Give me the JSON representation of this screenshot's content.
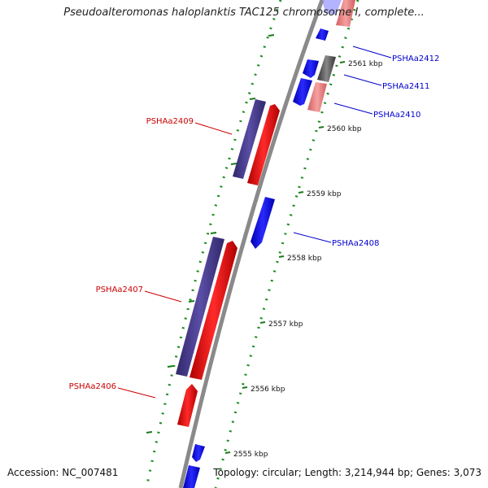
{
  "header": {
    "title": "Pseudoalteromonas haloplanktis TAC125 chromosome I, complete..."
  },
  "footer": {
    "accession": "Accession: NC_007481",
    "topology": "Topology: circular; Length: 3,214,944 bp; Genes: 3,073"
  },
  "ticks": [
    "2555 kbp",
    "2556 kbp",
    "2557 kbp",
    "2558 kbp",
    "2559 kbp",
    "2560 kbp",
    "2561 kbp"
  ],
  "gene_labels": {
    "PSHAa2412": "PSHAa2412",
    "PSHAa2411": "PSHAa2411",
    "PSHAa2410": "PSHAa2410",
    "PSHAa2409": "PSHAa2409",
    "PSHAa2408": "PSHAa2408",
    "PSHAa2407": "PSHAa2407",
    "PSHAa2406": "PSHAa2406"
  },
  "colors": {
    "forward_cds": "#ff0000",
    "forward_light": "#f08080",
    "reverse_cds": "#0000ff",
    "reverse_light": "#8080ff",
    "paired_rna": "#4b3f8f",
    "gray_feature": "#666666",
    "backbone": "#888888",
    "tick": "#1a7a1a",
    "label_red": "#cc0000",
    "label_blue": "#0000cc"
  }
}
